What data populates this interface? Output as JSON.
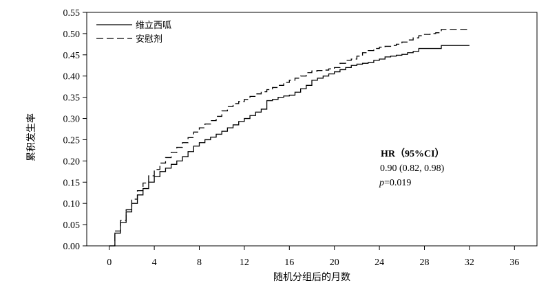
{
  "chart_data": {
    "type": "line",
    "title": "",
    "xlabel": "随机分组后的月数",
    "ylabel": "累积发生率",
    "xlim": [
      -2,
      38
    ],
    "ylim": [
      0,
      0.55
    ],
    "x_ticks": [
      "0",
      "4",
      "8",
      "12",
      "16",
      "20",
      "24",
      "28",
      "32",
      "36"
    ],
    "y_ticks": [
      "0.00",
      "0.05",
      "0.10",
      "0.15",
      "0.20",
      "0.25",
      "0.30",
      "0.35",
      "0.40",
      "0.45",
      "0.50",
      "0.55"
    ],
    "grid": false,
    "legend_position": "top-left",
    "series": [
      {
        "name": "维立西呱",
        "line_style": "solid",
        "color": "#000000",
        "points": [
          [
            0,
            0
          ],
          [
            0.5,
            0.03
          ],
          [
            1,
            0.055
          ],
          [
            1.5,
            0.08
          ],
          [
            2,
            0.1
          ],
          [
            2.5,
            0.12
          ],
          [
            3,
            0.135
          ],
          [
            3.5,
            0.15
          ],
          [
            4,
            0.163
          ],
          [
            4.5,
            0.175
          ],
          [
            5,
            0.183
          ],
          [
            5.5,
            0.192
          ],
          [
            6,
            0.2
          ],
          [
            6.5,
            0.21
          ],
          [
            7,
            0.222
          ],
          [
            7.5,
            0.235
          ],
          [
            8,
            0.243
          ],
          [
            8.5,
            0.25
          ],
          [
            9,
            0.256
          ],
          [
            9.5,
            0.263
          ],
          [
            10,
            0.27
          ],
          [
            10.5,
            0.278
          ],
          [
            11,
            0.285
          ],
          [
            11.5,
            0.293
          ],
          [
            12,
            0.3
          ],
          [
            12.5,
            0.307
          ],
          [
            13,
            0.315
          ],
          [
            13.5,
            0.322
          ],
          [
            14,
            0.342
          ],
          [
            14.5,
            0.345
          ],
          [
            15,
            0.35
          ],
          [
            15.5,
            0.353
          ],
          [
            16,
            0.355
          ],
          [
            16.5,
            0.362
          ],
          [
            17,
            0.37
          ],
          [
            17.5,
            0.378
          ],
          [
            18,
            0.39
          ],
          [
            18.5,
            0.395
          ],
          [
            19,
            0.4
          ],
          [
            19.5,
            0.405
          ],
          [
            20,
            0.41
          ],
          [
            20.5,
            0.415
          ],
          [
            21,
            0.42
          ],
          [
            21.5,
            0.425
          ],
          [
            22,
            0.428
          ],
          [
            22.5,
            0.43
          ],
          [
            23,
            0.432
          ],
          [
            23.5,
            0.437
          ],
          [
            24,
            0.44
          ],
          [
            24.5,
            0.445
          ],
          [
            25,
            0.447
          ],
          [
            25.5,
            0.449
          ],
          [
            26,
            0.451
          ],
          [
            26.5,
            0.455
          ],
          [
            27,
            0.458
          ],
          [
            27.5,
            0.465
          ],
          [
            29,
            0.465
          ],
          [
            29.5,
            0.472
          ],
          [
            30,
            0.472
          ],
          [
            32,
            0.472
          ]
        ]
      },
      {
        "name": "安慰剂",
        "line_style": "dashed",
        "color": "#000000",
        "points": [
          [
            0,
            0
          ],
          [
            0.5,
            0.035
          ],
          [
            1,
            0.06
          ],
          [
            1.5,
            0.085
          ],
          [
            2,
            0.11
          ],
          [
            2.5,
            0.13
          ],
          [
            3,
            0.148
          ],
          [
            3.5,
            0.165
          ],
          [
            4,
            0.18
          ],
          [
            4.5,
            0.195
          ],
          [
            5,
            0.208
          ],
          [
            5.5,
            0.22
          ],
          [
            6,
            0.232
          ],
          [
            6.5,
            0.243
          ],
          [
            7,
            0.255
          ],
          [
            7.5,
            0.268
          ],
          [
            8,
            0.278
          ],
          [
            8.5,
            0.287
          ],
          [
            9,
            0.295
          ],
          [
            9.5,
            0.305
          ],
          [
            10,
            0.318
          ],
          [
            10.5,
            0.328
          ],
          [
            11,
            0.335
          ],
          [
            11.5,
            0.34
          ],
          [
            12,
            0.345
          ],
          [
            12.5,
            0.352
          ],
          [
            13,
            0.358
          ],
          [
            13.5,
            0.363
          ],
          [
            14,
            0.368
          ],
          [
            14.5,
            0.373
          ],
          [
            15,
            0.378
          ],
          [
            15.5,
            0.385
          ],
          [
            16,
            0.39
          ],
          [
            16.5,
            0.395
          ],
          [
            17,
            0.4
          ],
          [
            17.5,
            0.408
          ],
          [
            18,
            0.412
          ],
          [
            18.5,
            0.413
          ],
          [
            19,
            0.414
          ],
          [
            19.5,
            0.417
          ],
          [
            20,
            0.42
          ],
          [
            20.5,
            0.43
          ],
          [
            21,
            0.437
          ],
          [
            21.5,
            0.44
          ],
          [
            22,
            0.447
          ],
          [
            22.5,
            0.455
          ],
          [
            23,
            0.46
          ],
          [
            23.5,
            0.465
          ],
          [
            24,
            0.468
          ],
          [
            24.5,
            0.47
          ],
          [
            25,
            0.472
          ],
          [
            25.5,
            0.475
          ],
          [
            26,
            0.48
          ],
          [
            26.5,
            0.485
          ],
          [
            27,
            0.49
          ],
          [
            27.5,
            0.495
          ],
          [
            28,
            0.498
          ],
          [
            28.5,
            0.5
          ],
          [
            29,
            0.502
          ],
          [
            29.5,
            0.51
          ],
          [
            30,
            0.51
          ],
          [
            32,
            0.51
          ]
        ]
      }
    ],
    "annotation": {
      "hr_label": "HR（95%CI）",
      "hr_value": "0.90 (0.82, 0.98)",
      "p_label": "p",
      "p_value": "=0.019"
    }
  }
}
